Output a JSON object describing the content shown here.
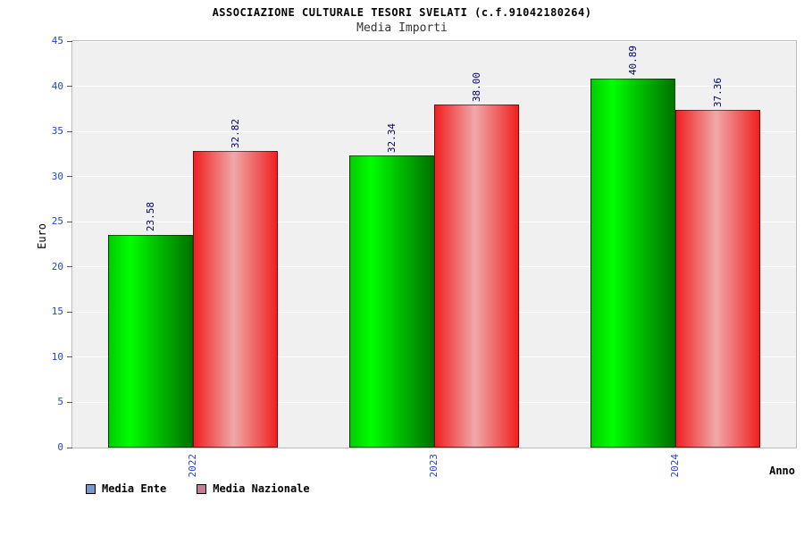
{
  "header": {
    "title": "ASSOCIAZIONE CULTURALE TESORI SVELATI (c.f.91042180264)",
    "subtitle": "Media Importi"
  },
  "chart_data": {
    "type": "bar",
    "title": "ASSOCIAZIONE CULTURALE TESORI SVELATI (c.f.91042180264)",
    "subtitle": "Media Importi",
    "xlabel": "Anno",
    "ylabel": "Euro",
    "ylim": [
      0,
      45
    ],
    "yticks": [
      0,
      5,
      10,
      15,
      20,
      25,
      30,
      35,
      40,
      45
    ],
    "grid": true,
    "legend_position": "bottom-left",
    "categories": [
      "2022",
      "2023",
      "2024"
    ],
    "series": [
      {
        "name": "Media Ente",
        "values": [
          23.58,
          32.34,
          40.89
        ],
        "value_labels": [
          "23.58",
          "32.34",
          "40.89"
        ],
        "bar_style": "green-gradient",
        "legend_color": "#7b96c8"
      },
      {
        "name": "Media Nazionale",
        "values": [
          32.82,
          38.0,
          37.36
        ],
        "value_labels": [
          "32.82",
          "38.00",
          "37.36"
        ],
        "bar_style": "red-gradient",
        "legend_color": "#c87b96"
      }
    ],
    "colors": {
      "axis_label_blue": "#2244cc",
      "value_label_navy": "#000066",
      "plot_background": "#f0f0f0",
      "grid_white": "#ffffff"
    }
  }
}
